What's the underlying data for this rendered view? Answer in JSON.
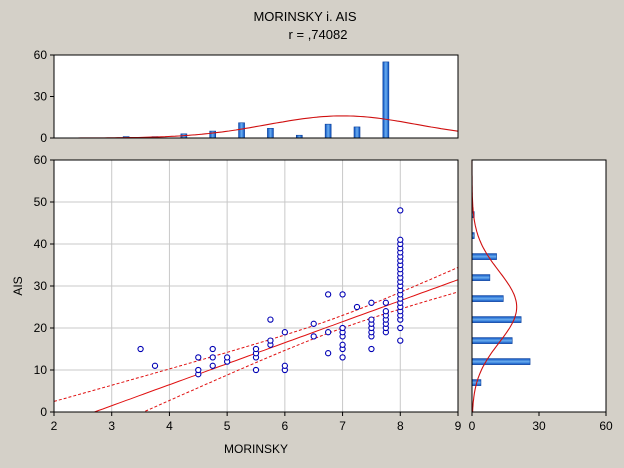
{
  "chart_data": {
    "type": "scatter",
    "title": "MORINSKY i. AIS",
    "subtitle": "r = ,74082",
    "xlabel": "MORINSKY",
    "ylabel": "AIS",
    "xlim": [
      2,
      9
    ],
    "ylim": [
      0,
      60
    ],
    "grid": true,
    "x_ticks": [
      "2",
      "3",
      "4",
      "5",
      "6",
      "7",
      "8",
      "9"
    ],
    "y_ticks": [
      "0",
      "10",
      "20",
      "30",
      "40",
      "50",
      "60"
    ],
    "points": [
      [
        3.5,
        15
      ],
      [
        3.75,
        11
      ],
      [
        4.5,
        9
      ],
      [
        4.5,
        10
      ],
      [
        4.5,
        13
      ],
      [
        4.75,
        11
      ],
      [
        4.75,
        13
      ],
      [
        4.75,
        15
      ],
      [
        5,
        12
      ],
      [
        5,
        13
      ],
      [
        5.5,
        10
      ],
      [
        5.5,
        13
      ],
      [
        5.5,
        14
      ],
      [
        5.5,
        15
      ],
      [
        5.75,
        16
      ],
      [
        5.75,
        17
      ],
      [
        5.75,
        22
      ],
      [
        6,
        10
      ],
      [
        6,
        11
      ],
      [
        6,
        19
      ],
      [
        6.5,
        18
      ],
      [
        6.5,
        21
      ],
      [
        6.75,
        14
      ],
      [
        6.75,
        19
      ],
      [
        6.75,
        28
      ],
      [
        7,
        13
      ],
      [
        7,
        15
      ],
      [
        7,
        16
      ],
      [
        7,
        18
      ],
      [
        7,
        19
      ],
      [
        7,
        20
      ],
      [
        7,
        28
      ],
      [
        7.25,
        25
      ],
      [
        7.5,
        15
      ],
      [
        7.5,
        18
      ],
      [
        7.5,
        19
      ],
      [
        7.5,
        20
      ],
      [
        7.5,
        21
      ],
      [
        7.5,
        22
      ],
      [
        7.5,
        26
      ],
      [
        7.75,
        19
      ],
      [
        7.75,
        20
      ],
      [
        7.75,
        21
      ],
      [
        7.75,
        22
      ],
      [
        7.75,
        23
      ],
      [
        7.75,
        24
      ],
      [
        7.75,
        26
      ],
      [
        8,
        17
      ],
      [
        8,
        20
      ],
      [
        8,
        22
      ],
      [
        8,
        23
      ],
      [
        8,
        24
      ],
      [
        8,
        25
      ],
      [
        8,
        26
      ],
      [
        8,
        27
      ],
      [
        8,
        28
      ],
      [
        8,
        29
      ],
      [
        8,
        30
      ],
      [
        8,
        31
      ],
      [
        8,
        32
      ],
      [
        8,
        33
      ],
      [
        8,
        34
      ],
      [
        8,
        35
      ],
      [
        8,
        36
      ],
      [
        8,
        37
      ],
      [
        8,
        38
      ],
      [
        8,
        39
      ],
      [
        8,
        40
      ],
      [
        8,
        41
      ],
      [
        8,
        48
      ]
    ],
    "regression": {
      "slope": 5.0,
      "intercept": -13.5
    },
    "confidence_band": true,
    "x_histogram": {
      "ylim": [
        0,
        60
      ],
      "y_ticks": [
        "0",
        "30",
        "60"
      ],
      "bins": [
        {
          "x": 3.25,
          "count": 1
        },
        {
          "x": 3.75,
          "count": 1
        },
        {
          "x": 4.25,
          "count": 3
        },
        {
          "x": 4.75,
          "count": 5
        },
        {
          "x": 5.25,
          "count": 11
        },
        {
          "x": 5.75,
          "count": 7
        },
        {
          "x": 6.25,
          "count": 2
        },
        {
          "x": 6.75,
          "count": 10
        },
        {
          "x": 7.25,
          "count": 8
        },
        {
          "x": 7.75,
          "count": 55
        }
      ],
      "normal_curve": {
        "mean": 7.0,
        "sd": 1.3,
        "peak": 16
      }
    },
    "y_histogram": {
      "xlim": [
        0,
        60
      ],
      "x_ticks": [
        "0",
        "30",
        "60"
      ],
      "bins": [
        {
          "y": 7,
          "count": 4
        },
        {
          "y": 12,
          "count": 26
        },
        {
          "y": 17,
          "count": 18
        },
        {
          "y": 22,
          "count": 22
        },
        {
          "y": 27,
          "count": 14
        },
        {
          "y": 32,
          "count": 8
        },
        {
          "y": 37,
          "count": 11
        },
        {
          "y": 42,
          "count": 1
        },
        {
          "y": 47,
          "count": 1
        }
      ],
      "normal_curve": {
        "mean": 25,
        "sd": 8.5,
        "peak": 20
      }
    }
  }
}
